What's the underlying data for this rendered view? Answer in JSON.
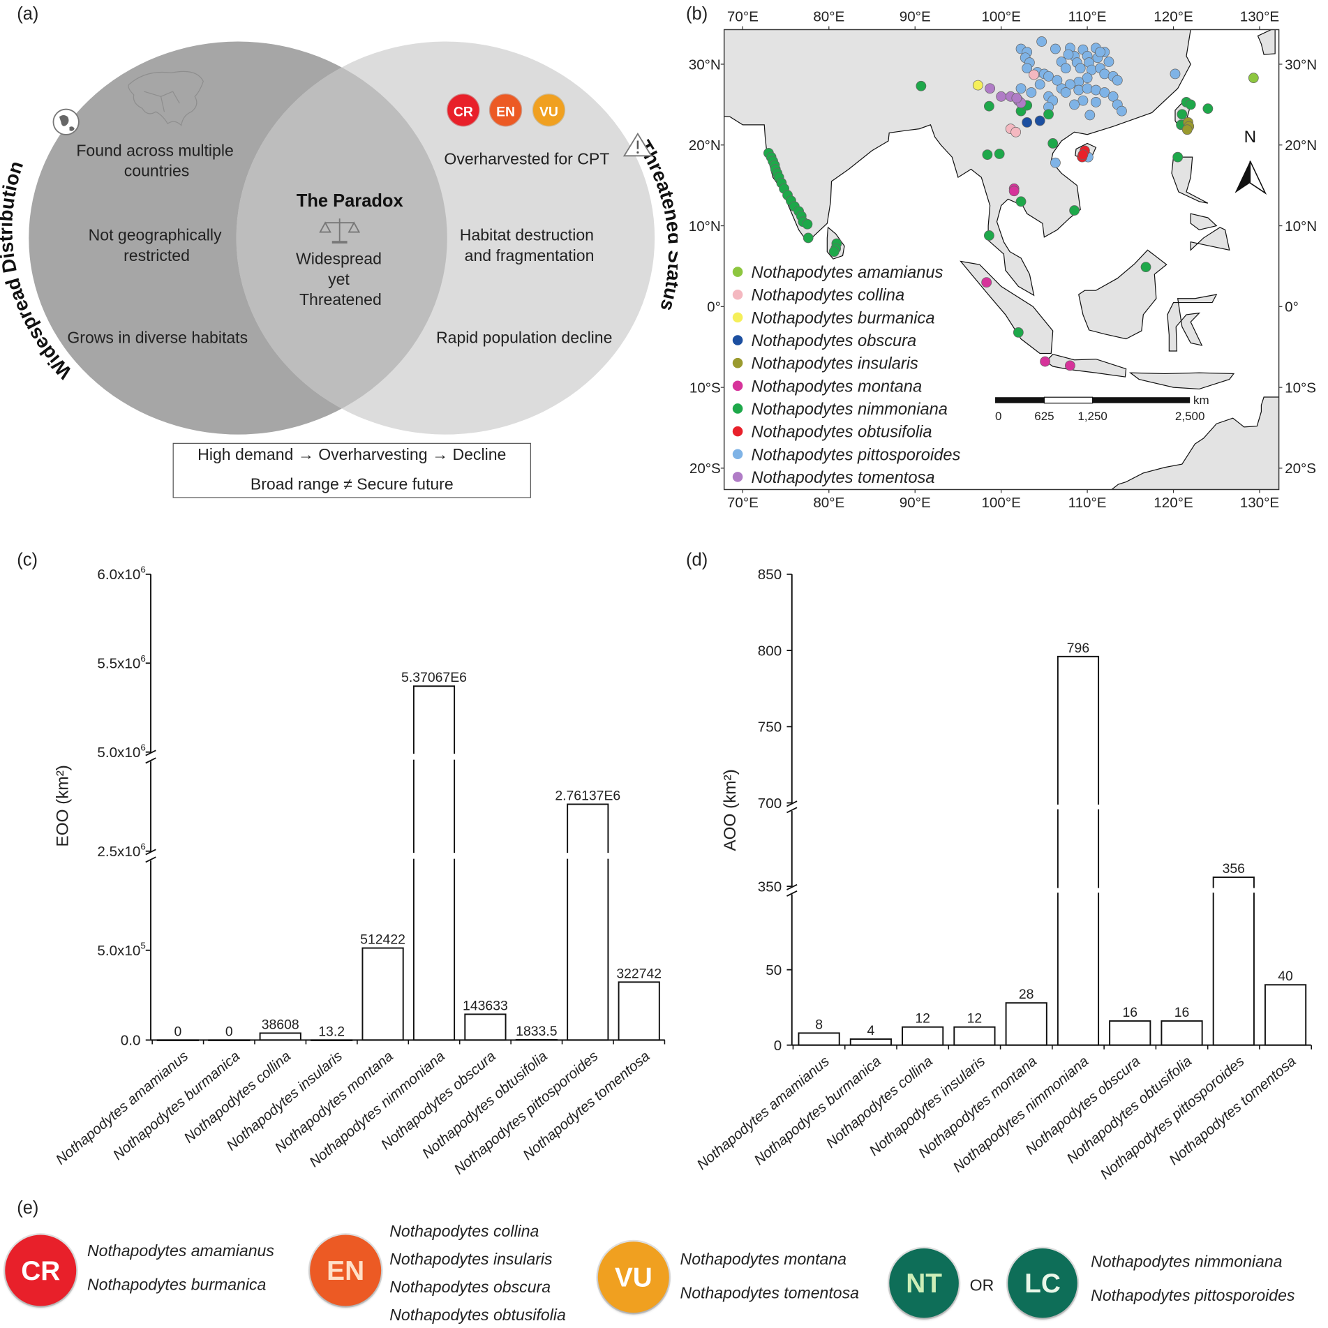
{
  "panel_labels": {
    "a": "(a)",
    "b": "(b)",
    "c": "(c)",
    "d": "(d)",
    "e": "(e)"
  },
  "venn": {
    "left_title": "Widespread Distribution",
    "right_title": "Threatened Status",
    "left_items": [
      "Found across multiple",
      "countries",
      "Not geographically",
      "restricted",
      "Grows in diverse habitats"
    ],
    "center_title": "The Paradox",
    "center_lines": [
      "Widespread",
      "yet",
      "Threatened"
    ],
    "right_items": [
      "Overharvested for CPT",
      "Habitat destruction",
      "and fragmentation",
      "Rapid population decline"
    ],
    "badges": [
      {
        "label": "CR",
        "color": "#e8202a"
      },
      {
        "label": "EN",
        "color": "#ec5a24"
      },
      {
        "label": "VU",
        "color": "#f0a020"
      }
    ],
    "box_lines": [
      "High demand → Overharvesting → Decline",
      "Broad range ≠ Secure future"
    ],
    "colors": {
      "left": "#a6a6a6",
      "overlap": "#bdbdbd",
      "right": "#dcdcdc"
    }
  },
  "map": {
    "lon_labels": [
      "70°E",
      "80°E",
      "90°E",
      "100°E",
      "110°E",
      "120°E",
      "130°E"
    ],
    "lon_values": [
      70,
      80,
      90,
      100,
      110,
      120,
      130
    ],
    "lat_labels_left": [
      "30°N",
      "20°N",
      "10°N",
      "0°",
      "10°S",
      "20°S"
    ],
    "lat_labels_right": [
      "30°N",
      "20°N",
      "10°N",
      "0°",
      "10°S",
      "20°S"
    ],
    "lat_values": [
      30,
      20,
      10,
      0,
      -10,
      -20
    ],
    "north_label": "N",
    "scale_bar": {
      "labels": [
        "0",
        "625",
        "1,250",
        "2,500"
      ],
      "unit": "km"
    },
    "legend": [
      {
        "name": "Nothapodytes amamianus",
        "color": "#8dc63f"
      },
      {
        "name": "Nothapodytes collina",
        "color": "#f4b8c0"
      },
      {
        "name": "Nothapodytes burmanica",
        "color": "#f5ef5a"
      },
      {
        "name": "Nothapodytes obscura",
        "color": "#1c4fa0"
      },
      {
        "name": "Nothapodytes insularis",
        "color": "#9a9a2e"
      },
      {
        "name": "Nothapodytes montana",
        "color": "#d6339a"
      },
      {
        "name": "Nothapodytes nimmoniana",
        "color": "#1ea84a"
      },
      {
        "name": "Nothapodytes obtusifolia",
        "color": "#e8202a"
      },
      {
        "name": "Nothapodytes pittosporoides",
        "color": "#7fb3e6"
      },
      {
        "name": "Nothapodytes tomentosa",
        "color": "#b07cc6"
      }
    ],
    "occurrences": {
      "Nothapodytes amamianus": [
        [
          129.3,
          28.3
        ]
      ],
      "Nothapodytes collina": [
        [
          103.8,
          28.7
        ],
        [
          101.1,
          22
        ],
        [
          101.7,
          21.6
        ]
      ],
      "Nothapodytes burmanica": [
        [
          97.3,
          27.4
        ]
      ],
      "Nothapodytes obscura": [
        [
          103,
          22.8
        ],
        [
          104.5,
          23
        ]
      ],
      "Nothapodytes insularis": [
        [
          121.7,
          22.8
        ],
        [
          121.8,
          22.3
        ],
        [
          121.6,
          21.9
        ]
      ],
      "Nothapodytes montana": [
        [
          101.5,
          14.6
        ],
        [
          101.5,
          14.3
        ],
        [
          98.3,
          3
        ],
        [
          105.1,
          -6.8
        ],
        [
          108,
          -7.3
        ]
      ],
      "Nothapodytes nimmoniana": [
        [
          73,
          19
        ],
        [
          73.3,
          18.5
        ],
        [
          73.5,
          18
        ],
        [
          73.7,
          17.5
        ],
        [
          73.8,
          17
        ],
        [
          74,
          16.5
        ],
        [
          74.2,
          16
        ],
        [
          74.5,
          15.3
        ],
        [
          74.8,
          14.6
        ],
        [
          75.2,
          13.8
        ],
        [
          75.6,
          13.1
        ],
        [
          76,
          12.4
        ],
        [
          76.5,
          11.8
        ],
        [
          76.8,
          11.2
        ],
        [
          77,
          10.5
        ],
        [
          77.5,
          10.2
        ],
        [
          77.6,
          8.5
        ],
        [
          80.9,
          7.8
        ],
        [
          80.8,
          7.2
        ],
        [
          80.6,
          6.8
        ],
        [
          90.7,
          27.3
        ],
        [
          98.6,
          24.8
        ],
        [
          98.4,
          18.8
        ],
        [
          99.8,
          18.9
        ],
        [
          102.3,
          24.2
        ],
        [
          103,
          24.9
        ],
        [
          105.5,
          23.8
        ],
        [
          106,
          20.2
        ],
        [
          102.3,
          13
        ],
        [
          108.5,
          11.9
        ],
        [
          98.6,
          8.8
        ],
        [
          102,
          -3.2
        ],
        [
          116.8,
          4.9
        ],
        [
          121.5,
          25.3
        ],
        [
          122,
          25
        ],
        [
          124,
          24.5
        ],
        [
          121,
          23.8
        ],
        [
          120.9,
          22.5
        ],
        [
          121.2,
          22.5
        ],
        [
          120.5,
          18.5
        ]
      ],
      "Nothapodytes obtusifolia": [
        [
          109.7,
          19.3
        ],
        [
          109.4,
          18.5
        ],
        [
          109.5,
          18.8
        ]
      ],
      "Nothapodytes pittosporoides": [
        [
          104.7,
          32.8
        ],
        [
          102.3,
          31.9
        ],
        [
          103,
          31.5
        ],
        [
          102.8,
          30.8
        ],
        [
          103.3,
          30.2
        ],
        [
          103,
          29.5
        ],
        [
          104.2,
          29
        ],
        [
          105,
          28.8
        ],
        [
          105.5,
          28.5
        ],
        [
          106.3,
          31.9
        ],
        [
          107,
          30.3
        ],
        [
          107.5,
          29.5
        ],
        [
          108,
          32
        ],
        [
          108.5,
          31
        ],
        [
          108.8,
          30.2
        ],
        [
          109.2,
          29.5
        ],
        [
          109.5,
          31.8
        ],
        [
          110,
          31
        ],
        [
          110.2,
          30.2
        ],
        [
          110.5,
          29.3
        ],
        [
          111,
          32
        ],
        [
          111.2,
          30.8
        ],
        [
          111.5,
          29.5
        ],
        [
          112,
          31.5
        ],
        [
          112.5,
          30.3
        ],
        [
          112,
          28.8
        ],
        [
          113,
          28.5
        ],
        [
          113.5,
          28
        ],
        [
          110,
          28.3
        ],
        [
          109,
          27.8
        ],
        [
          108,
          27.5
        ],
        [
          107,
          27
        ],
        [
          106.5,
          28
        ],
        [
          104.5,
          27.5
        ],
        [
          102.3,
          27
        ],
        [
          103.5,
          26.5
        ],
        [
          105.5,
          26
        ],
        [
          107.5,
          26.5
        ],
        [
          109,
          26.8
        ],
        [
          110,
          27
        ],
        [
          111,
          26.8
        ],
        [
          112,
          26.5
        ],
        [
          113,
          26
        ],
        [
          109.5,
          25.5
        ],
        [
          111,
          25.3
        ],
        [
          113.5,
          25
        ],
        [
          114,
          24.2
        ],
        [
          110.3,
          23.7
        ],
        [
          108.5,
          25
        ],
        [
          106,
          25.5
        ],
        [
          120.2,
          28.8
        ],
        [
          106.3,
          17.8
        ],
        [
          110.1,
          18.5
        ],
        [
          105.5,
          24.7
        ],
        [
          107.8,
          31.2
        ],
        [
          111.5,
          31.5
        ]
      ],
      "Nothapodytes tomentosa": [
        [
          98.7,
          27
        ],
        [
          100,
          26
        ],
        [
          101.1,
          26
        ],
        [
          102,
          25.5
        ],
        [
          102.3,
          25.2
        ],
        [
          101.8,
          25.8
        ]
      ]
    }
  },
  "chart_data": [
    {
      "type": "bar",
      "title": "",
      "xlabel": "",
      "ylabel": "EOO (km²)",
      "categories": [
        "Nothapodytes amamianus",
        "Nothapodytes burmanica",
        "Nothapodytes collina",
        "Nothapodytes insularis",
        "Nothapodytes montana",
        "Nothapodytes nimmoniana",
        "Nothapodytes obscura",
        "Nothapodytes obtusifolia",
        "Nothapodytes pittosporoides",
        "Nothapodytes tomentosa"
      ],
      "values": [
        0,
        0,
        38608,
        13.2,
        512422,
        5370670,
        143633,
        1833.5,
        2761370,
        322742
      ],
      "value_labels": [
        "0",
        "0",
        "38608",
        "13.2",
        "512422",
        "5.37067E6",
        "143633",
        "1833.5",
        "2.76137E6",
        "322742"
      ],
      "axis_segments": [
        [
          0,
          1000000
        ],
        [
          2500000,
          3000000
        ],
        [
          5000000,
          6000000
        ]
      ],
      "ylim": [
        0,
        6000000
      ],
      "yticks": [
        {
          "value": 0,
          "base": "0.0",
          "exp": ""
        },
        {
          "value": 500000,
          "base": "5.0x10",
          "exp": "5"
        },
        {
          "value": 2500000,
          "base": "2.5x10",
          "exp": "6"
        },
        {
          "value": 5000000,
          "base": "5.0x10",
          "exp": "6"
        },
        {
          "value": 5500000,
          "base": "5.5x10",
          "exp": "6"
        },
        {
          "value": 6000000,
          "base": "6.0x10",
          "exp": "6"
        }
      ],
      "grid": false
    },
    {
      "type": "bar",
      "title": "",
      "xlabel": "",
      "ylabel": "AOO (km²)",
      "categories": [
        "Nothapodytes amamianus",
        "Nothapodytes burmanica",
        "Nothapodytes collina",
        "Nothapodytes insularis",
        "Nothapodytes montana",
        "Nothapodytes nimmoniana",
        "Nothapodytes obscura",
        "Nothapodytes obtusifolia",
        "Nothapodytes pittosporoides",
        "Nothapodytes tomentosa"
      ],
      "values": [
        8,
        4,
        12,
        12,
        28,
        796,
        16,
        16,
        356,
        40
      ],
      "value_labels": [
        "8",
        "4",
        "12",
        "12",
        "28",
        "796",
        "16",
        "16",
        "356",
        "40"
      ],
      "axis_segments": [
        [
          0,
          100
        ],
        [
          350,
          400
        ],
        [
          700,
          850
        ]
      ],
      "ylim": [
        0,
        850
      ],
      "yticks": [
        {
          "value": 0,
          "base": "0",
          "exp": ""
        },
        {
          "value": 50,
          "base": "50",
          "exp": ""
        },
        {
          "value": 350,
          "base": "350",
          "exp": ""
        },
        {
          "value": 700,
          "base": "700",
          "exp": ""
        },
        {
          "value": 750,
          "base": "750",
          "exp": ""
        },
        {
          "value": 800,
          "base": "800",
          "exp": ""
        },
        {
          "value": 850,
          "base": "850",
          "exp": ""
        }
      ],
      "grid": false
    }
  ],
  "status_legend": {
    "groups": [
      {
        "label": "CR",
        "color": "#e8202a",
        "text_color": "#ffffff",
        "species": [
          "Nothapodytes amamianus",
          "Nothapodytes burmanica"
        ]
      },
      {
        "label": "EN",
        "color": "#ec5a24",
        "text_color": "#ffe0c8",
        "species": [
          "Nothapodytes collina",
          "Nothapodytes insularis",
          "Nothapodytes obscura",
          "Nothapodytes obtusifolia"
        ]
      },
      {
        "label": "VU",
        "color": "#f0a020",
        "text_color": "#ffffff",
        "species": [
          "Nothapodytes montana",
          "Nothapodytes tomentosa"
        ]
      },
      {
        "label": "NT",
        "color": "#0e6e58",
        "text_color": "#cdeeb8",
        "species": []
      },
      {
        "label": "LC",
        "color": "#0e6e58",
        "text_color": "#e8f6e8",
        "species": [
          "Nothapodytes nimmoniana",
          "Nothapodytes pittosporoides"
        ]
      }
    ],
    "or_label": "OR"
  }
}
